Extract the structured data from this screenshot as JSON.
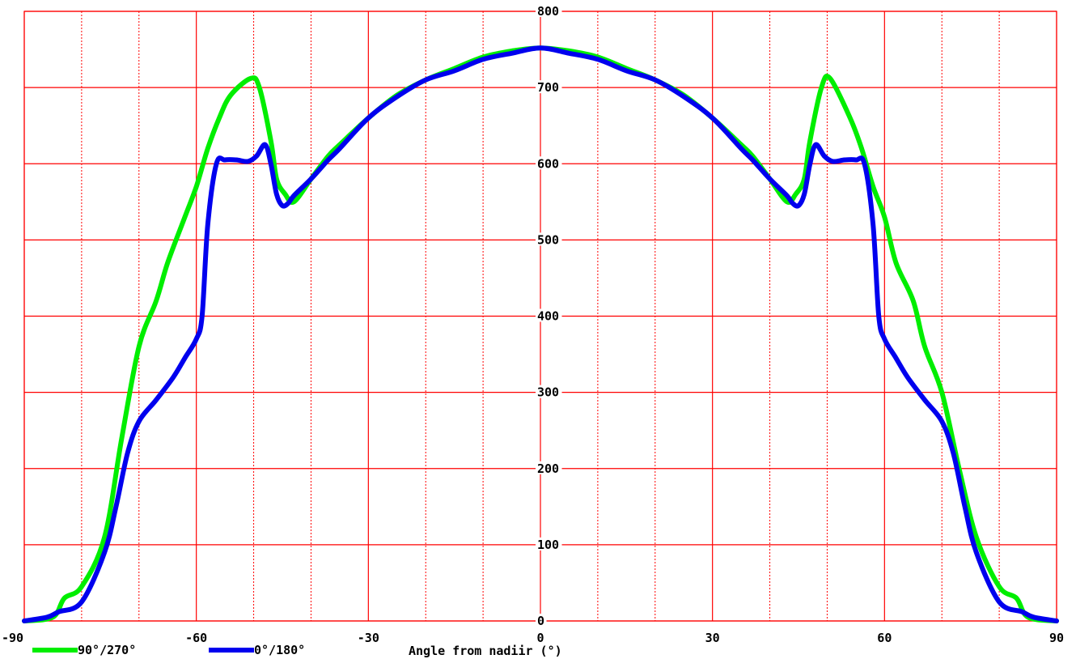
{
  "chart_data": {
    "type": "line",
    "title": "",
    "xlabel": "Angle from nadiir (°)",
    "ylabel": "",
    "xlim": [
      -90,
      90
    ],
    "ylim": [
      0,
      800
    ],
    "grid": true,
    "grid_color": "#ff0000",
    "x_ticks": [
      -90,
      -60,
      -30,
      0,
      30,
      60,
      90
    ],
    "x_tick_labels": [
      "-90",
      "-60",
      "-30",
      "0",
      "30",
      "60",
      "90"
    ],
    "y_ticks": [
      0,
      100,
      200,
      300,
      400,
      500,
      600,
      700,
      800
    ],
    "y_tick_labels": [
      "0",
      "100",
      "200",
      "300",
      "400",
      "500",
      "600",
      "700",
      "800"
    ],
    "legend_position": "bottom-left",
    "series": [
      {
        "name": "90°/270°",
        "color": "#00ee00",
        "x": [
          -90,
          -85,
          -83,
          -80,
          -76,
          -73,
          -70,
          -67,
          -65,
          -62,
          -60,
          -58,
          -56,
          -54,
          -50.5,
          -49,
          -47,
          -46,
          -44.5,
          -43,
          -40,
          -37,
          -35,
          -30,
          -25,
          -20,
          -15,
          -10,
          -5,
          0,
          5,
          10,
          15,
          20,
          25,
          30,
          35,
          37,
          40,
          43,
          44.5,
          46,
          47,
          49,
          50.5,
          54,
          56,
          58,
          60,
          62,
          65,
          67,
          70,
          73,
          76,
          80,
          83,
          85,
          90
        ],
        "y": [
          0,
          5,
          30,
          45,
          110,
          240,
          360,
          420,
          470,
          530,
          570,
          620,
          660,
          690,
          712,
          700,
          630,
          580,
          560,
          550,
          580,
          610,
          625,
          660,
          690,
          710,
          725,
          740,
          748,
          752,
          748,
          740,
          725,
          710,
          690,
          660,
          625,
          610,
          580,
          550,
          560,
          580,
          630,
          700,
          712,
          660,
          620,
          570,
          530,
          470,
          420,
          360,
          300,
          200,
          110,
          45,
          30,
          5,
          0
        ]
      },
      {
        "name": "0°/180°",
        "color": "#0000ee",
        "x": [
          -90,
          -86,
          -84,
          -80,
          -76,
          -74,
          -72,
          -70,
          -67,
          -64,
          -62,
          -60,
          -59,
          -58,
          -56.5,
          -55,
          -53,
          -51,
          -49.5,
          -48,
          -47,
          -46,
          -45,
          -44,
          -43,
          -40,
          -37,
          -35,
          -30,
          -25,
          -20,
          -15,
          -10,
          -5,
          0,
          5,
          10,
          15,
          20,
          25,
          30,
          35,
          37,
          40,
          43,
          44,
          45,
          46,
          47,
          48,
          49.5,
          51,
          53,
          55,
          56.5,
          58,
          59,
          60,
          62,
          64,
          67,
          70,
          72,
          74,
          76,
          80,
          84,
          86,
          90
        ],
        "y": [
          0,
          5,
          12,
          25,
          90,
          150,
          220,
          262,
          290,
          320,
          345,
          370,
          400,
          520,
          600,
          605,
          605,
          603,
          610,
          625,
          600,
          560,
          545,
          548,
          558,
          580,
          605,
          620,
          660,
          688,
          710,
          722,
          737,
          745,
          752,
          745,
          737,
          722,
          710,
          688,
          660,
          620,
          605,
          580,
          558,
          548,
          545,
          560,
          600,
          625,
          610,
          603,
          605,
          605,
          600,
          520,
          400,
          370,
          345,
          320,
          290,
          262,
          220,
          150,
          90,
          25,
          12,
          5,
          0
        ]
      }
    ]
  }
}
